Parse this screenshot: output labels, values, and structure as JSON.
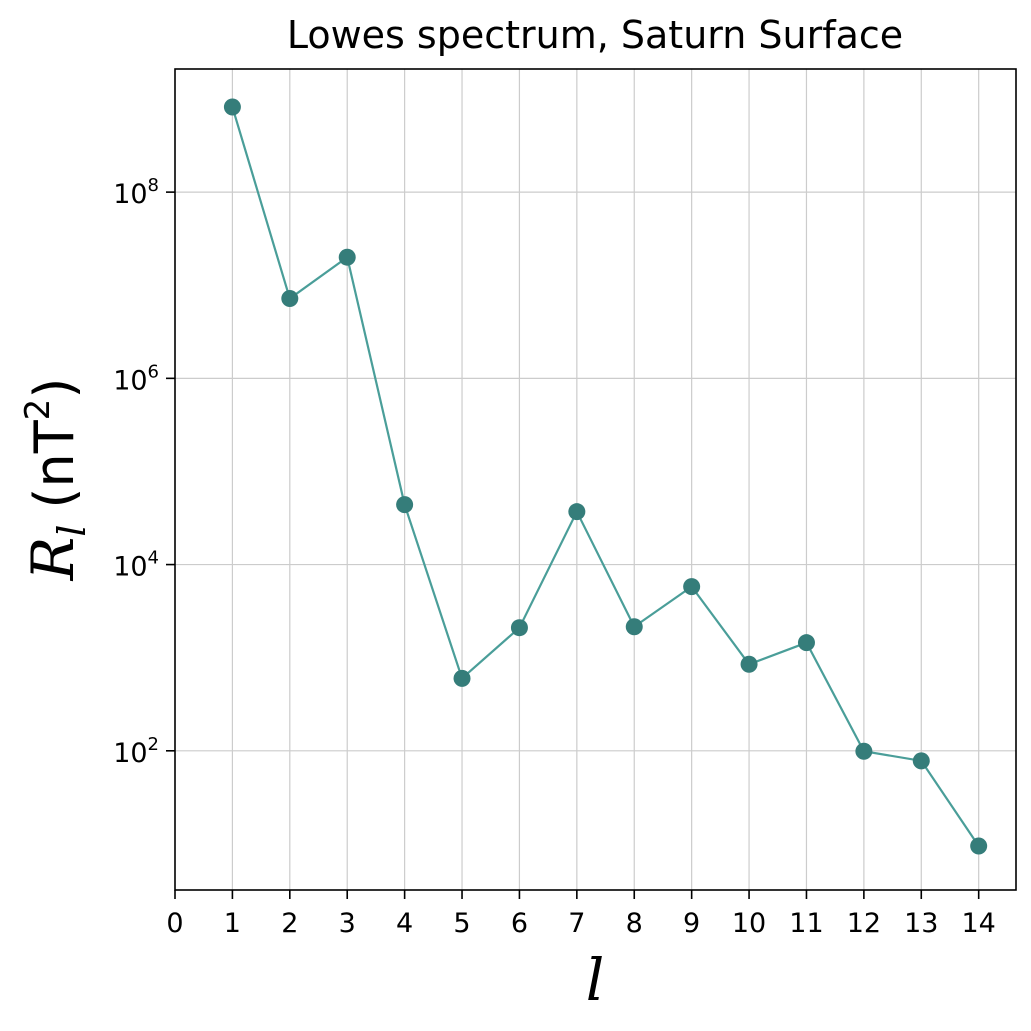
{
  "chart_data": {
    "type": "line",
    "title": "Lowes spectrum, Saturn  Surface",
    "xlabel": "l",
    "ylabel": {
      "symbol": "R",
      "subscript": "l",
      "unit_open": "(nT",
      "unit_power": "2",
      "unit_close": ")"
    },
    "yscale": "log",
    "grid": true,
    "xlim": [
      0,
      14.65
    ],
    "ylim": [
      3.2,
      2100000000.0
    ],
    "xticks": [
      0,
      1,
      2,
      3,
      4,
      5,
      6,
      7,
      8,
      9,
      10,
      11,
      12,
      13,
      14
    ],
    "yticks": [
      {
        "value": 100,
        "base": "10",
        "exp": "2"
      },
      {
        "value": 10000,
        "base": "10",
        "exp": "4"
      },
      {
        "value": 1000000,
        "base": "10",
        "exp": "6"
      },
      {
        "value": 100000000,
        "base": "10",
        "exp": "8"
      }
    ],
    "series": [
      {
        "x": [
          1,
          2,
          3,
          4,
          5,
          6,
          7,
          8,
          9,
          10,
          11,
          12,
          13,
          14
        ],
        "y": [
          820000000,
          7200000,
          20000000,
          44000,
          600,
          2100,
          37000,
          2150,
          5800,
          850,
          1450,
          99,
          78,
          9.5
        ],
        "line_color": "#4a9e99",
        "marker_color": "#357d7a"
      }
    ]
  }
}
